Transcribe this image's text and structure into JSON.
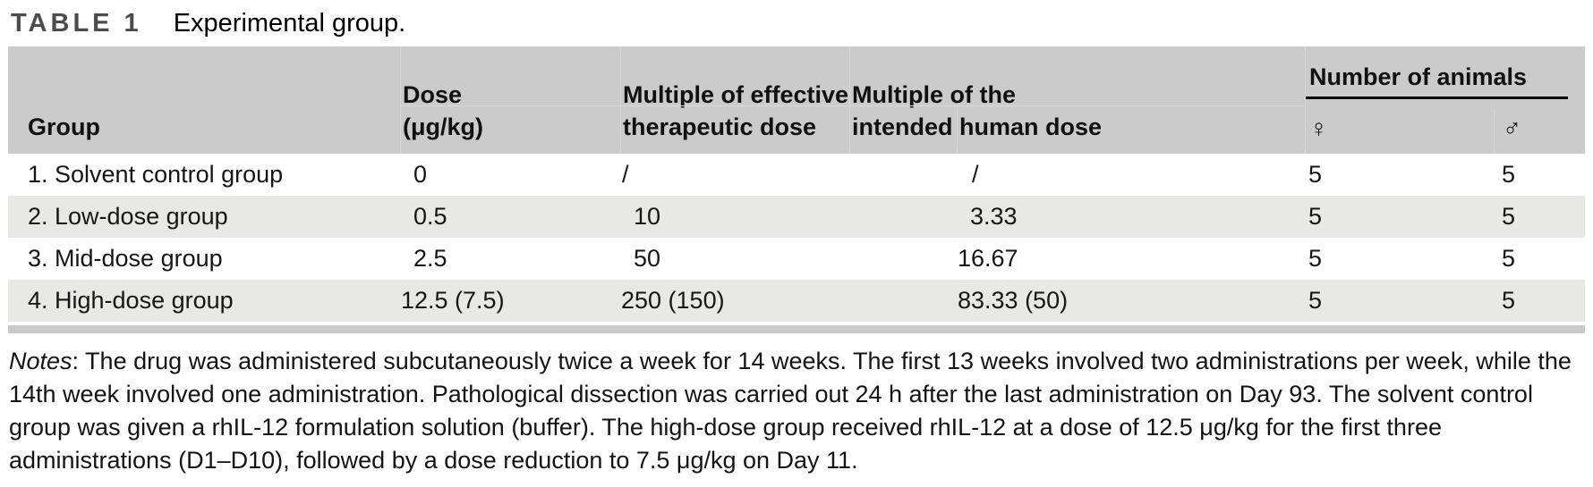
{
  "title": {
    "label": "TABLE 1",
    "caption": "Experimental group."
  },
  "table": {
    "headers": {
      "group": "Group",
      "dose": [
        "Dose",
        "(μg/kg)"
      ],
      "multiple_effective": [
        "Multiple of effective",
        "therapeutic dose"
      ],
      "multiple_human": [
        "Multiple of the",
        "intended human dose"
      ],
      "number_of_animals": "Number of animals",
      "female_symbol": "♀",
      "male_symbol": "♂"
    },
    "rows": [
      [
        "1. Solvent control group",
        "0",
        "/",
        "/",
        "5",
        "5"
      ],
      [
        "2. Low-dose group",
        "0.5",
        "10",
        "3.33",
        "5",
        "5"
      ],
      [
        "3. Mid-dose group",
        "2.5",
        "50",
        "16.67",
        "5",
        "5"
      ],
      [
        "4. High-dose group",
        "12.5 (7.5)",
        "250 (150)",
        "83.33 (50)",
        "5",
        "5"
      ]
    ]
  },
  "notes": {
    "label": "Notes",
    "body": ": The drug was administered subcutaneously twice a week for 14 weeks. The first 13 weeks involved two administrations per week, while the 14th week involved one administration. Pathological dissection was carried out 24 h after the last administration on Day 93. The solvent control group was given a rhIL-12 formulation solution (buffer). The high-dose group received rhIL-12 at a dose of 12.5 μg/kg for the first three administrations (D1–D10), followed by a dose reduction to 7.5 μg/kg on Day 11."
  },
  "colors": {
    "header_bg": "#cbcbcb",
    "row_alt_bg": "#e8e8e7",
    "bottom_bar": "#c9c9c9",
    "rule": "#000000",
    "title_label": "#4c4c4c"
  }
}
